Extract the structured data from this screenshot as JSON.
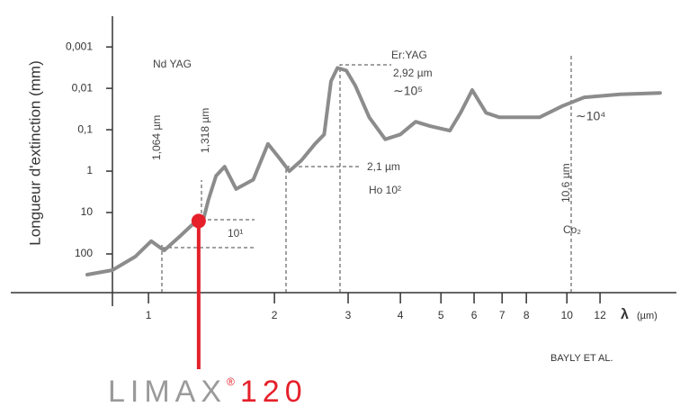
{
  "chart_data": {
    "type": "line",
    "y_label": "Longueur d'extinction (mm)",
    "x_label": "λ",
    "x_unit": "(µm)",
    "x_log": true,
    "y_log": true,
    "xlim": [
      0.82,
      18
    ],
    "ylim": [
      1000,
      0.0002
    ],
    "xticks": [
      1,
      2,
      3,
      4,
      5,
      6,
      7,
      8,
      10,
      12
    ],
    "yticks": [
      {
        "value": 0.001,
        "label": "0,001"
      },
      {
        "value": 0.01,
        "label": "0,01"
      },
      {
        "value": 0.1,
        "label": "0,1"
      },
      1,
      10,
      100
    ],
    "series": [
      {
        "color": "#8c8c8c",
        "x": [
          0.714,
          0.82,
          0.93,
          1.015,
          1.09,
          1.19,
          1.27,
          1.35,
          1.39,
          1.45,
          1.52,
          1.62,
          1.78,
          1.93,
          2.05,
          2.17,
          2.32,
          2.5,
          2.63,
          2.73,
          2.83,
          2.97,
          3.12,
          3.37,
          3.68,
          4.0,
          4.35,
          4.71,
          5.25,
          5.57,
          5.94,
          6.41,
          6.9,
          7.8,
          8.6,
          9.74,
          11.0,
          13.4,
          16.7
        ],
        "values": [
          316,
          246,
          116,
          49,
          82,
          37,
          20,
          16,
          5,
          1.3,
          0.78,
          2.7,
          1.6,
          0.22,
          0.47,
          1,
          0.55,
          0.22,
          0.13,
          0.0067,
          0.0032,
          0.0037,
          0.0086,
          0.05,
          0.17,
          0.13,
          0.064,
          0.082,
          0.105,
          0.039,
          0.011,
          0.039,
          0.05,
          0.05,
          0.05,
          0.027,
          0.0165,
          0.014,
          0.0129
        ]
      }
    ],
    "highlight": {
      "x": 1.318,
      "y": 16,
      "color": "#e5202a"
    },
    "annotations": {
      "nd_yag": "Nd YAG",
      "nd_1064": "1,064 µm",
      "nd_1318": "1,318 µm",
      "ratio_nd": "10¹",
      "er_yag": "Er:YAG",
      "er_wl": "2,92 µm",
      "er_ratio": "∼10⁵",
      "ho_wl": "2,1 µm",
      "ho": "Ho 10²",
      "co2_wl": "10,6 µm",
      "co2": "Co₂",
      "co2_ratio": "∼10⁴"
    },
    "source": "BAYLY ET AL.",
    "logo": {
      "brand": "LIMAX",
      "registered": "®",
      "model": "120"
    }
  }
}
